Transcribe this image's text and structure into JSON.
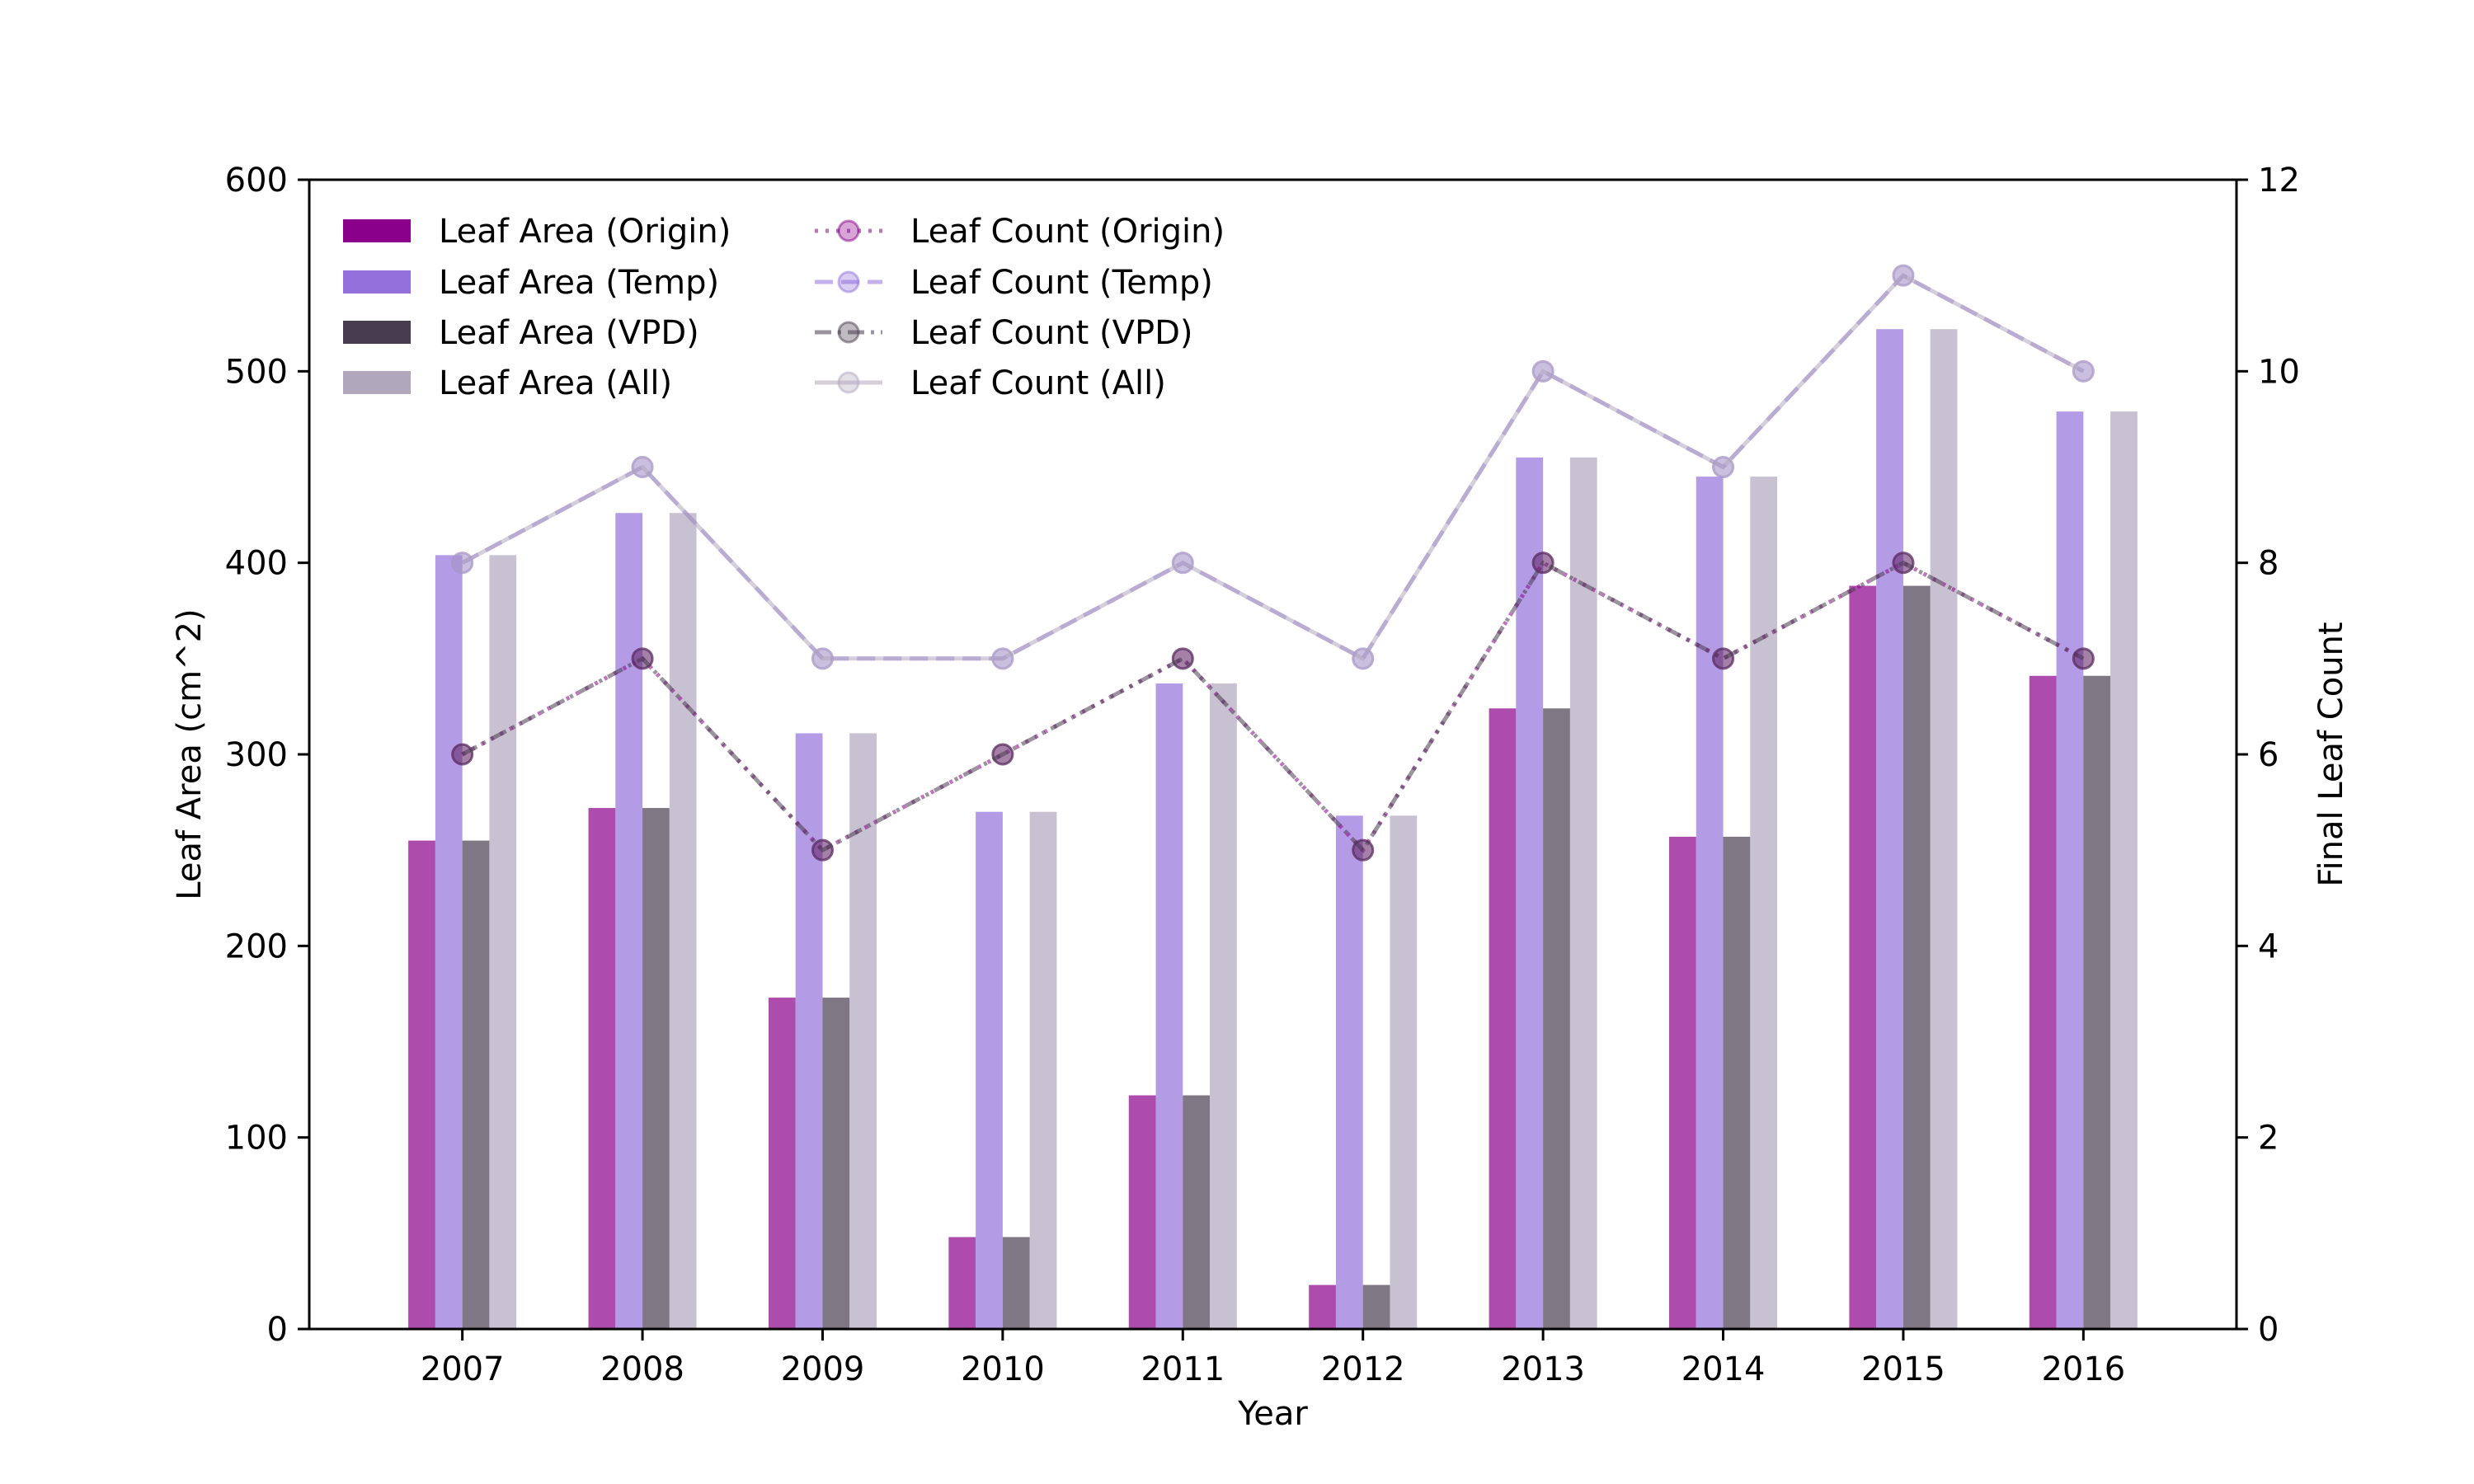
{
  "chart_data": {
    "type": "bar",
    "title": "",
    "xlabel": "Year",
    "ylabel": "Leaf Area (cm^2)",
    "y2label": "Final Leaf Count",
    "ylim": [
      0,
      600
    ],
    "y2lim": [
      0,
      12
    ],
    "yticks": [
      0,
      100,
      200,
      300,
      400,
      500,
      600
    ],
    "y2ticks": [
      0,
      2,
      4,
      6,
      8,
      10,
      12
    ],
    "grid": false,
    "legend_position": "top-left",
    "categories": [
      "2007",
      "2008",
      "2009",
      "2010",
      "2011",
      "2012",
      "2013",
      "2014",
      "2015",
      "2016"
    ],
    "series": [
      {
        "name": "Leaf Area (Origin)",
        "kind": "bar",
        "axis": "left",
        "color": "#8b008b",
        "values": [
          255,
          272,
          173,
          48,
          122,
          23,
          324,
          257,
          388,
          341
        ]
      },
      {
        "name": "Leaf Area (Temp)",
        "kind": "bar",
        "axis": "left",
        "color": "#9370db",
        "values": [
          404,
          426,
          311,
          270,
          337,
          268,
          455,
          445,
          522,
          479
        ]
      },
      {
        "name": "Leaf Area (VPD)",
        "kind": "bar",
        "axis": "left",
        "color": "#483d4f",
        "values": [
          255,
          272,
          173,
          48,
          122,
          23,
          324,
          257,
          388,
          341
        ]
      },
      {
        "name": "Leaf Area (All)",
        "kind": "bar",
        "axis": "left",
        "color": "#b1a7bd",
        "values": [
          404,
          426,
          311,
          270,
          337,
          268,
          455,
          445,
          522,
          479
        ]
      },
      {
        "name": "Leaf Count (Origin)",
        "kind": "line",
        "axis": "right",
        "color": "#8b008b",
        "style": "dotted",
        "values": [
          6,
          7,
          5,
          6,
          7,
          5,
          8,
          7,
          8,
          7
        ]
      },
      {
        "name": "Leaf Count (Temp)",
        "kind": "line",
        "axis": "right",
        "color": "#9370db",
        "style": "dashed",
        "values": [
          8,
          9,
          7,
          7,
          8,
          7,
          10,
          9,
          11,
          10
        ]
      },
      {
        "name": "Leaf Count (VPD)",
        "kind": "line",
        "axis": "right",
        "color": "#483d4f",
        "style": "dashdot",
        "values": [
          6,
          7,
          5,
          6,
          7,
          5,
          8,
          7,
          8,
          7
        ]
      },
      {
        "name": "Leaf Count (All)",
        "kind": "line",
        "axis": "right",
        "color": "#b1a7bd",
        "style": "solid",
        "values": [
          8,
          9,
          7,
          7,
          8,
          7,
          10,
          9,
          11,
          10
        ]
      }
    ]
  }
}
